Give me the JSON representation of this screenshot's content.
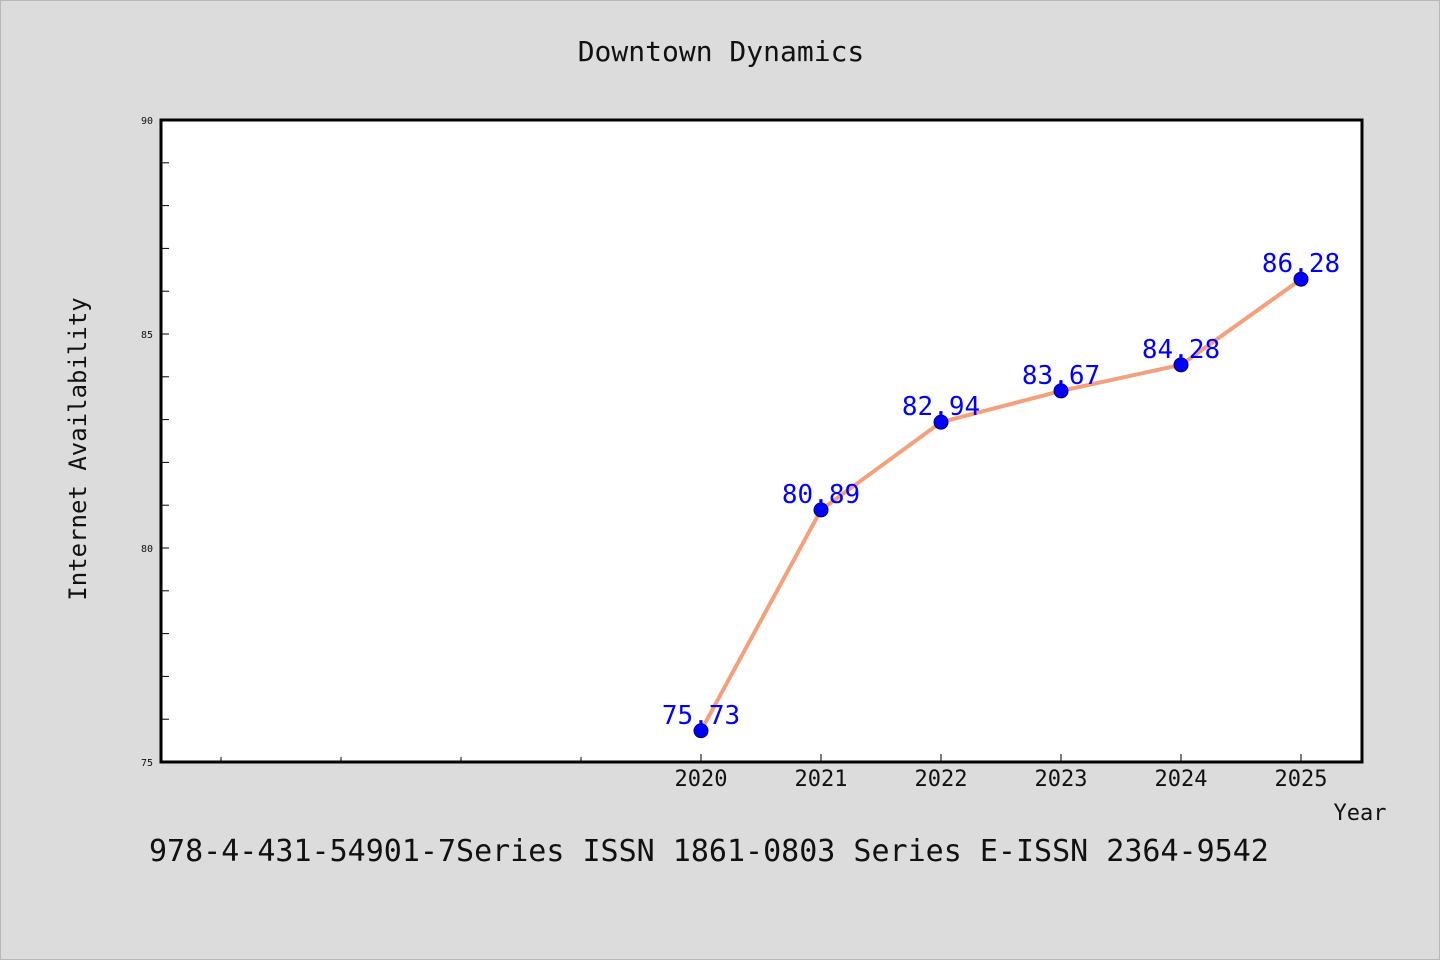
{
  "chart_data": {
    "type": "line",
    "title": "Downtown Dynamics",
    "xlabel": "Year",
    "ylabel": "Internet Availability",
    "x": [
      "2020",
      "2021",
      "2022",
      "2023",
      "2024",
      "2025"
    ],
    "series": [
      {
        "values": [
          75.73,
          80.89,
          82.94,
          83.67,
          84.28,
          86.28
        ],
        "labels": [
          "75.73",
          "80.89",
          "82.94",
          "83.67",
          "84.28",
          "86.28"
        ]
      }
    ],
    "ylim": [
      75,
      90
    ],
    "yticks": [
      "75",
      "80",
      "85",
      "90"
    ],
    "grid": false,
    "legend": "none",
    "colors": {
      "line": "#f4a07c",
      "marker": "#0000ff",
      "data_label": "#0000ff",
      "background": "#dcdcdc",
      "plot_background": "#ffffff"
    }
  },
  "footer": {
    "text": "978-4-431-54901-7Series ISSN 1861-0803 Series E-ISSN 2364-9542"
  }
}
